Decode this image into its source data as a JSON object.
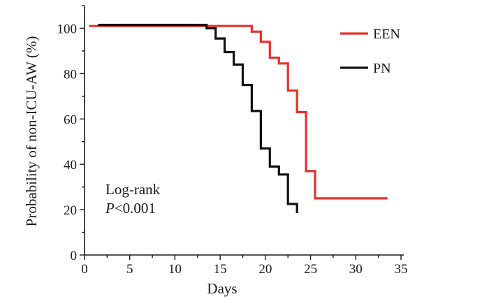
{
  "chart_data": {
    "type": "line",
    "step": true,
    "xlabel": "Days",
    "ylabel": "Probability of non-ICU-AW (%)",
    "xlim": [
      0,
      35
    ],
    "ylim": [
      0,
      110
    ],
    "xticks": [
      0,
      5,
      10,
      15,
      20,
      25,
      30,
      35
    ],
    "yticks": [
      0,
      20,
      40,
      60,
      80,
      100
    ],
    "grid": false,
    "legend": {
      "placement": "top-right"
    },
    "annotation": {
      "line1": "Log-rank",
      "p_symbol": "P",
      "p_rest": "<0.001"
    },
    "series": [
      {
        "name": "EEN",
        "color": "#e8312a",
        "x": [
          0.5,
          18.5,
          19.5,
          20.5,
          21.5,
          22.5,
          23.5,
          24.5,
          25.5,
          33.5
        ],
        "y": [
          101,
          98.5,
          94,
          87,
          84.5,
          72.5,
          63,
          37,
          25,
          25
        ]
      },
      {
        "name": "PN",
        "color": "#111111",
        "x": [
          1.5,
          13.5,
          14.5,
          15.5,
          16.5,
          17.5,
          18.5,
          19.5,
          20.5,
          21.5,
          22.5,
          23.5
        ],
        "y": [
          101.5,
          100,
          95.5,
          89.5,
          84,
          75,
          63.5,
          47,
          39,
          35.5,
          22.5,
          18.5
        ]
      }
    ]
  }
}
